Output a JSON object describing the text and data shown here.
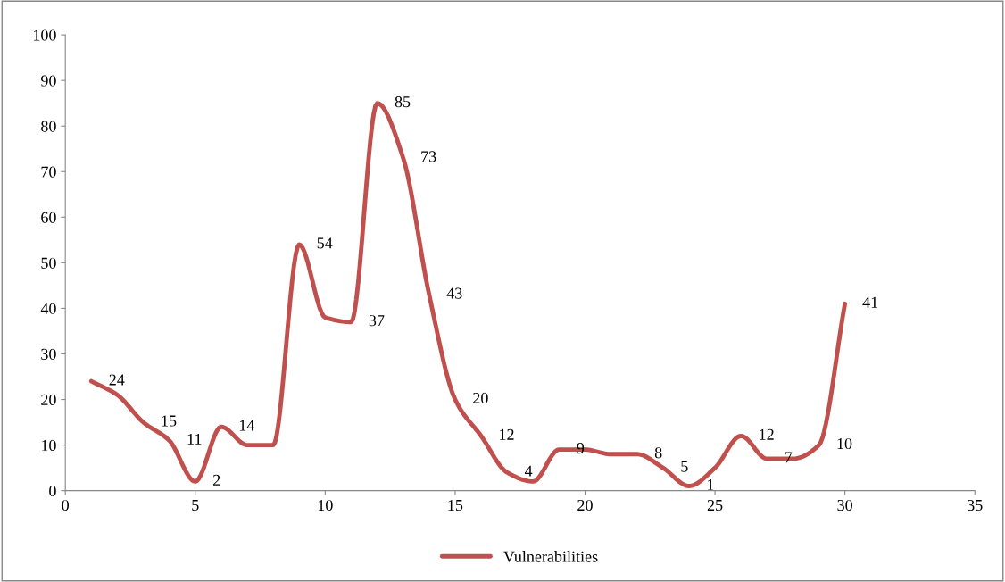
{
  "chart_data": {
    "type": "line",
    "x": [
      1,
      2,
      3,
      4,
      5,
      6,
      7,
      8,
      9,
      10,
      11,
      12,
      13,
      14,
      15,
      16,
      17,
      18,
      19,
      20,
      21,
      22,
      23,
      24,
      25,
      26,
      27,
      28,
      29,
      30
    ],
    "series": [
      {
        "name": "Vulnerabilities",
        "color": "#c0504d",
        "values": [
          24,
          21,
          15,
          11,
          2,
          14,
          10,
          10,
          54,
          38,
          37,
          85,
          73,
          43,
          20,
          12,
          4,
          2,
          9,
          9,
          8,
          8,
          5,
          1,
          5,
          12,
          7,
          7,
          10,
          41
        ],
        "value_labels": [
          "24",
          null,
          "15",
          "11",
          "2",
          "14",
          null,
          null,
          "54",
          null,
          "37",
          "85",
          "73",
          "43",
          "20",
          "12",
          "4",
          null,
          "9",
          null,
          null,
          "8",
          "5",
          "1",
          null,
          "12",
          "7",
          null,
          "10",
          "41"
        ]
      }
    ],
    "xlim": [
      0,
      35
    ],
    "xticks": [
      0,
      5,
      10,
      15,
      20,
      25,
      30,
      35
    ],
    "ylim": [
      0,
      100
    ],
    "yticks": [
      0,
      10,
      20,
      30,
      40,
      50,
      60,
      70,
      80,
      90,
      100
    ],
    "grid": false,
    "legend": "bottom",
    "marker": "none",
    "line_style": "solid"
  }
}
